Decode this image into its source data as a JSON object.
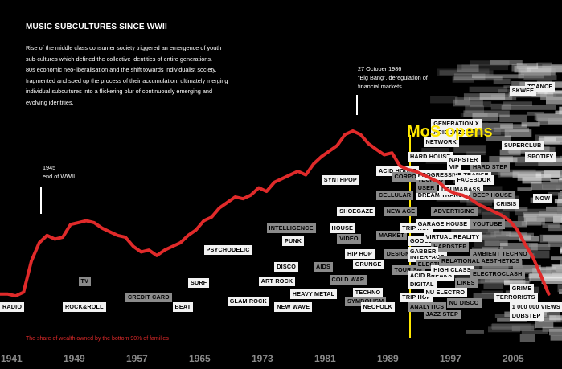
{
  "title": "MUSIC SUBCULTURES SINCE WWII",
  "intro_lines": [
    "Rise of the middle class consumer society triggered an emergence of youth",
    "sub-cultures which defined the collective identities of entire generations.",
    "80s economic neo-liberalisation and the shift towards individualist society,",
    "fragmented and sped up the process of their accumulation, ultimately merging",
    "individual subcultures into a flickering blur of continuously emerging and",
    "evolving identities."
  ],
  "annotations": {
    "ww2": {
      "year": 1945,
      "line1": "1945",
      "line2": "end of WWII"
    },
    "bigbang": {
      "year": 1986,
      "line1": "27 October 1986",
      "line2": "“Big Bang”, deregulation of",
      "line3": "financial markets"
    },
    "mos": {
      "year": 1992,
      "label": "MoS opens"
    }
  },
  "source_note": "The share of wealth owned by the bottom 90% of families",
  "colors": {
    "line": "#e02a2a",
    "accent": "#ffe800",
    "axis_text": "#8a8a8a"
  },
  "chart_data": {
    "type": "line",
    "title": "MUSIC SUBCULTURES SINCE WWII",
    "xlabel": "",
    "ylabel": "",
    "xlim": [
      1941,
      2011
    ],
    "ylim": [
      0,
      100
    ],
    "x_ticks": [
      "1941",
      "1949",
      "1957",
      "1965",
      "1973",
      "1981",
      "1989",
      "1997",
      "2005"
    ],
    "series": [
      {
        "name": "The share of wealth owned by the bottom 90% of families",
        "x": [
          1941,
          1942,
          1943,
          1944,
          1945,
          1946,
          1947,
          1948,
          1949,
          1950,
          1951,
          1952,
          1953,
          1954,
          1955,
          1956,
          1957,
          1958,
          1959,
          1960,
          1961,
          1962,
          1963,
          1964,
          1965,
          1966,
          1967,
          1968,
          1969,
          1970,
          1971,
          1972,
          1973,
          1974,
          1975,
          1976,
          1977,
          1978,
          1979,
          1980,
          1981,
          1982,
          1983,
          1984,
          1985,
          1986,
          1987,
          1988,
          1989,
          1990,
          1991,
          1992,
          1993,
          1994,
          1995,
          1996,
          1997,
          1998,
          1999,
          2000,
          2001,
          2002,
          2003,
          2004,
          2005,
          2006,
          2007,
          2008,
          2009,
          2010,
          2011
        ],
        "values": [
          15,
          15,
          14,
          16,
          33,
          43,
          47,
          45,
          46,
          53,
          54,
          55,
          54,
          51,
          49,
          47,
          46,
          41,
          38,
          39,
          36,
          39,
          41,
          43,
          47,
          50,
          55,
          57,
          62,
          65,
          68,
          67,
          69,
          73,
          71,
          76,
          78,
          80,
          82,
          80,
          86,
          90,
          93,
          96,
          102,
          104,
          102,
          97,
          94,
          91,
          92,
          85,
          83,
          82,
          80,
          78,
          76,
          72,
          70,
          69,
          67,
          64,
          62,
          60,
          58,
          55,
          50,
          42,
          35,
          25,
          15
        ]
      }
    ]
  },
  "genre_labels": [
    {
      "text": "RADIO",
      "year": 1941,
      "y": 8,
      "style": "white"
    },
    {
      "text": "ROCK&ROLL",
      "year": 1949,
      "y": 8,
      "style": "white"
    },
    {
      "text": "TV",
      "year": 1951,
      "y": 22,
      "style": "grey"
    },
    {
      "text": "CREDIT CARD",
      "year": 1957,
      "y": 13,
      "style": "grey"
    },
    {
      "text": "BEAT",
      "year": 1963,
      "y": 8,
      "style": "white"
    },
    {
      "text": "SURF",
      "year": 1965,
      "y": 21,
      "style": "white"
    },
    {
      "text": "PSYCHODELIC",
      "year": 1967,
      "y": 39,
      "style": "white"
    },
    {
      "text": "GLAM ROCK",
      "year": 1970,
      "y": 11,
      "style": "white"
    },
    {
      "text": "ART ROCK",
      "year": 1974,
      "y": 22,
      "style": "white"
    },
    {
      "text": "INTELLIGENCE",
      "year": 1975,
      "y": 51,
      "style": "grey"
    },
    {
      "text": "PUNK",
      "year": 1977,
      "y": 44,
      "style": "white"
    },
    {
      "text": "DISCO",
      "year": 1976,
      "y": 30,
      "style": "white"
    },
    {
      "text": "HEAVY METAL",
      "year": 1978,
      "y": 15,
      "style": "white"
    },
    {
      "text": "NEW WAVE",
      "year": 1976,
      "y": 8,
      "style": "white"
    },
    {
      "text": "AIDS",
      "year": 1981,
      "y": 30,
      "style": "grey"
    },
    {
      "text": "SYNTHPOP",
      "year": 1982,
      "y": 77,
      "style": "white"
    },
    {
      "text": "HOUSE",
      "year": 1983,
      "y": 51,
      "style": "white"
    },
    {
      "text": "SHOEGAZE",
      "year": 1984,
      "y": 60,
      "style": "white"
    },
    {
      "text": "VIDEO",
      "year": 1984,
      "y": 45,
      "style": "grey"
    },
    {
      "text": "HIP HOP",
      "year": 1985,
      "y": 37,
      "style": "white"
    },
    {
      "text": "COLD WAR",
      "year": 1983,
      "y": 23,
      "style": "grey"
    },
    {
      "text": "GRUNGE",
      "year": 1986,
      "y": 31,
      "style": "white"
    },
    {
      "text": "TECHNO",
      "year": 1986,
      "y": 16,
      "style": "white"
    },
    {
      "text": "SYMBOLISM",
      "year": 1985,
      "y": 11,
      "style": "grey"
    },
    {
      "text": "NEOFOLK",
      "year": 1987,
      "y": 8,
      "style": "white"
    },
    {
      "text": "CELLULAR",
      "year": 1989,
      "y": 69,
      "style": "grey"
    },
    {
      "text": "NEW AGE",
      "year": 1990,
      "y": 60,
      "style": "grey"
    },
    {
      "text": "MARKET",
      "year": 1989,
      "y": 47,
      "style": "grey"
    },
    {
      "text": "DESIGN",
      "year": 1990,
      "y": 37,
      "style": "grey"
    },
    {
      "text": "ACID HOUSE",
      "year": 1989,
      "y": 82,
      "style": "white"
    },
    {
      "text": "CORPORATE",
      "year": 1991,
      "y": 79,
      "style": "grey"
    },
    {
      "text": "TRIP HOP",
      "year": 1992,
      "y": 51,
      "style": "white"
    },
    {
      "text": "GOOGLE",
      "year": 1993,
      "y": 44,
      "style": "white"
    },
    {
      "text": "TOURISM",
      "year": 1991,
      "y": 28,
      "style": "grey"
    },
    {
      "text": "INTERFACE",
      "year": 1993,
      "y": 35,
      "style": "white"
    },
    {
      "text": "ELECTRO",
      "year": 1994,
      "y": 31,
      "style": "grey"
    },
    {
      "text": "ACID BREAKS",
      "year": 1993,
      "y": 25,
      "style": "white"
    },
    {
      "text": "DIGITAL",
      "year": 1993,
      "y": 20,
      "style": "white"
    },
    {
      "text": "TRIP HOP",
      "year": 1992,
      "y": 13,
      "style": "white"
    },
    {
      "text": "ANALYTICS",
      "year": 1993,
      "y": 8,
      "style": "grey"
    },
    {
      "text": "JAZZ STEP",
      "year": 1995,
      "y": 4,
      "style": "grey"
    },
    {
      "text": "NU ELECTRO",
      "year": 1995,
      "y": 16,
      "style": "white"
    },
    {
      "text": "NU DISCO",
      "year": 1998,
      "y": 10,
      "style": "grey"
    },
    {
      "text": "LIKES",
      "year": 1999,
      "y": 21,
      "style": "grey"
    },
    {
      "text": "HIGH CLASS",
      "year": 1996,
      "y": 28,
      "style": "white"
    },
    {
      "text": "RELATIONAL AESTHETICS",
      "year": 1997,
      "y": 33,
      "style": "grey"
    },
    {
      "text": "HARDSTEP",
      "year": 1996,
      "y": 41,
      "style": "grey"
    },
    {
      "text": "VIRTUAL REALITY",
      "year": 1995,
      "y": 46,
      "style": "white"
    },
    {
      "text": "GARAGE HOUSE",
      "year": 1994,
      "y": 53,
      "style": "white"
    },
    {
      "text": "YOUTUBE",
      "year": 2001,
      "y": 53,
      "style": "grey"
    },
    {
      "text": "ADVERTISING",
      "year": 1996,
      "y": 60,
      "style": "grey"
    },
    {
      "text": "GABBER",
      "year": 1993,
      "y": 38,
      "style": "white"
    },
    {
      "text": "DREAM TRANCE",
      "year": 1994,
      "y": 69,
      "style": "white"
    },
    {
      "text": "DRUM&BASS",
      "year": 1997,
      "y": 72,
      "style": "white"
    },
    {
      "text": "USER",
      "year": 1994,
      "y": 73,
      "style": "grey"
    },
    {
      "text": "TECHNO",
      "year": 1994,
      "y": 77,
      "style": "grey"
    },
    {
      "text": "PROGRESSIVE TRANCE",
      "year": 1994,
      "y": 80,
      "style": "white"
    },
    {
      "text": "FACEBOOK",
      "year": 1999,
      "y": 77,
      "style": "white"
    },
    {
      "text": "VIP",
      "year": 1998,
      "y": 84,
      "style": "white"
    },
    {
      "text": "HARD STEP",
      "year": 2001,
      "y": 84,
      "style": "grey"
    },
    {
      "text": "HARD HOUSE",
      "year": 1993,
      "y": 90,
      "style": "white"
    },
    {
      "text": "NAPSTER",
      "year": 1998,
      "y": 88,
      "style": "white"
    },
    {
      "text": "NETWORK",
      "year": 1995,
      "y": 98,
      "style": "white"
    },
    {
      "text": "ACID JAZZ",
      "year": 1996,
      "y": 103,
      "style": "white"
    },
    {
      "text": "GENERATION X",
      "year": 1996,
      "y": 108,
      "style": "white"
    },
    {
      "text": "DEEP HOUSE",
      "year": 2001,
      "y": 69,
      "style": "grey"
    },
    {
      "text": "AMBIENT TECHNO",
      "year": 2001,
      "y": 37,
      "style": "grey"
    },
    {
      "text": "ELECTROCLASH",
      "year": 2001,
      "y": 26,
      "style": "grey"
    },
    {
      "text": "DUBSTEP",
      "year": 2006,
      "y": 3,
      "style": "white"
    },
    {
      "text": "TERRORISTS",
      "year": 2004,
      "y": 13,
      "style": "white"
    },
    {
      "text": "GRIME",
      "year": 2006,
      "y": 18,
      "style": "white"
    },
    {
      "text": "SUPERCLUB",
      "year": 2005,
      "y": 96,
      "style": "white"
    },
    {
      "text": "TRANCE",
      "year": 2008,
      "y": 128,
      "style": "white"
    },
    {
      "text": "CRISIS",
      "year": 2004,
      "y": 64,
      "style": "white"
    },
    {
      "text": "NOW",
      "year": 2009,
      "y": 67,
      "style": "white"
    },
    {
      "text": "SPOTIFY",
      "year": 2008,
      "y": 90,
      "style": "white"
    },
    {
      "text": "SKWEE",
      "year": 2006,
      "y": 126,
      "style": "white"
    },
    {
      "text": "1 000 000 VIEWS",
      "year": 2006,
      "y": 8,
      "style": "white"
    }
  ]
}
